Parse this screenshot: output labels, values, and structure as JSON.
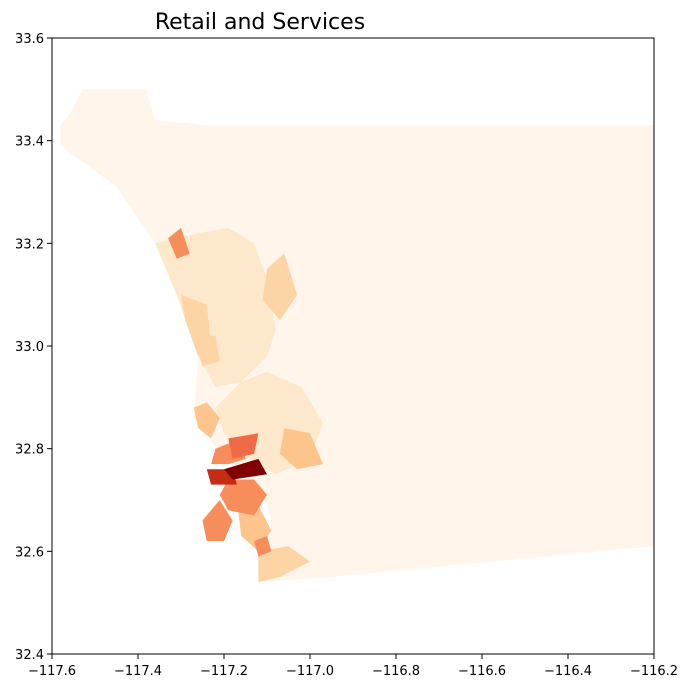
{
  "title": "Retail and Services",
  "colormap": "OrRd",
  "colors": {
    "level0": "#fff5eb",
    "level1": "#fde8cb",
    "level2": "#fdd4a4",
    "level3": "#fdc48c",
    "level4": "#f88d5c",
    "level5": "#ef6b48",
    "level6": "#c42c16",
    "level7": "#7f0000"
  },
  "chart_data": {
    "type": "choropleth",
    "title": "Retail and Services",
    "xlim": [
      -117.6,
      -116.2
    ],
    "ylim": [
      32.4,
      33.6
    ],
    "xticks": [
      {
        "value": -117.6,
        "label": "−117.6"
      },
      {
        "value": -117.4,
        "label": "−117.4"
      },
      {
        "value": -117.2,
        "label": "−117.2"
      },
      {
        "value": -117.0,
        "label": "−117.0"
      },
      {
        "value": -116.8,
        "label": "−116.8"
      },
      {
        "value": -116.6,
        "label": "−116.6"
      },
      {
        "value": -116.4,
        "label": "−116.4"
      },
      {
        "value": -116.2,
        "label": "−116.2"
      }
    ],
    "yticks": [
      {
        "value": 32.4,
        "label": "32.4"
      },
      {
        "value": 32.6,
        "label": "32.6"
      },
      {
        "value": 32.8,
        "label": "32.8"
      },
      {
        "value": 33.0,
        "label": "33.0"
      },
      {
        "value": 33.2,
        "label": "33.2"
      },
      {
        "value": 33.4,
        "label": "33.4"
      },
      {
        "value": 33.6,
        "label": "33.6"
      }
    ],
    "grid": false,
    "legend": "none",
    "regions": [
      {
        "level": 0,
        "points": [
          [
            -117.53,
            33.5
          ],
          [
            -117.38,
            33.5
          ],
          [
            -117.36,
            33.44
          ],
          [
            -117.24,
            33.43
          ],
          [
            -116.2,
            33.43
          ],
          [
            -116.2,
            32.61
          ],
          [
            -116.95,
            32.55
          ],
          [
            -117.12,
            32.54
          ],
          [
            -117.1,
            32.58
          ],
          [
            -117.09,
            32.66
          ],
          [
            -117.11,
            32.72
          ],
          [
            -117.2,
            32.78
          ],
          [
            -117.27,
            32.86
          ],
          [
            -117.26,
            32.98
          ],
          [
            -117.31,
            33.1
          ],
          [
            -117.36,
            33.2
          ],
          [
            -117.45,
            33.31
          ],
          [
            -117.58,
            33.39
          ],
          [
            -117.58,
            33.43
          ],
          [
            -117.56,
            33.45
          ]
        ]
      },
      {
        "level": 1,
        "points": [
          [
            -117.36,
            33.2
          ],
          [
            -117.26,
            33.22
          ],
          [
            -117.19,
            33.23
          ],
          [
            -117.13,
            33.2
          ],
          [
            -117.1,
            33.13
          ],
          [
            -117.08,
            33.03
          ],
          [
            -117.1,
            32.98
          ],
          [
            -117.16,
            32.93
          ],
          [
            -117.22,
            32.92
          ],
          [
            -117.26,
            32.98
          ],
          [
            -117.31,
            33.1
          ]
        ]
      },
      {
        "level": 1,
        "points": [
          [
            -117.16,
            32.93
          ],
          [
            -117.1,
            32.95
          ],
          [
            -117.02,
            32.92
          ],
          [
            -116.97,
            32.85
          ],
          [
            -117.0,
            32.78
          ],
          [
            -117.08,
            32.75
          ],
          [
            -117.14,
            32.78
          ],
          [
            -117.2,
            32.83
          ],
          [
            -117.22,
            32.88
          ]
        ]
      },
      {
        "level": 2,
        "points": [
          [
            -117.3,
            33.1
          ],
          [
            -117.24,
            33.08
          ],
          [
            -117.23,
            33.0
          ],
          [
            -117.26,
            32.98
          ],
          [
            -117.29,
            33.05
          ]
        ]
      },
      {
        "level": 2,
        "points": [
          [
            -117.27,
            33.02
          ],
          [
            -117.22,
            33.02
          ],
          [
            -117.21,
            32.97
          ],
          [
            -117.25,
            32.96
          ]
        ]
      },
      {
        "level": 2,
        "points": [
          [
            -117.1,
            33.15
          ],
          [
            -117.06,
            33.18
          ],
          [
            -117.03,
            33.1
          ],
          [
            -117.07,
            33.05
          ],
          [
            -117.11,
            33.09
          ]
        ]
      },
      {
        "level": 3,
        "points": [
          [
            -117.24,
            32.89
          ],
          [
            -117.27,
            32.88
          ],
          [
            -117.26,
            32.84
          ],
          [
            -117.23,
            32.82
          ],
          [
            -117.21,
            32.86
          ]
        ]
      },
      {
        "level": 3,
        "points": [
          [
            -117.06,
            32.84
          ],
          [
            -117.0,
            32.83
          ],
          [
            -116.97,
            32.77
          ],
          [
            -117.03,
            32.76
          ],
          [
            -117.07,
            32.79
          ]
        ]
      },
      {
        "level": 3,
        "points": [
          [
            -117.17,
            32.7
          ],
          [
            -117.12,
            32.69
          ],
          [
            -117.09,
            32.64
          ],
          [
            -117.12,
            32.6
          ],
          [
            -117.16,
            32.63
          ]
        ]
      },
      {
        "level": 2,
        "points": [
          [
            -117.12,
            32.6
          ],
          [
            -117.05,
            32.61
          ],
          [
            -117.0,
            32.58
          ],
          [
            -117.07,
            32.55
          ],
          [
            -117.12,
            32.54
          ]
        ]
      },
      {
        "level": 4,
        "points": [
          [
            -117.19,
            32.74
          ],
          [
            -117.13,
            32.74
          ],
          [
            -117.1,
            32.71
          ],
          [
            -117.13,
            32.67
          ],
          [
            -117.19,
            32.68
          ],
          [
            -117.21,
            32.71
          ]
        ]
      },
      {
        "level": 4,
        "points": [
          [
            -117.22,
            32.8
          ],
          [
            -117.16,
            32.82
          ],
          [
            -117.15,
            32.78
          ],
          [
            -117.19,
            32.77
          ],
          [
            -117.23,
            32.77
          ]
        ]
      },
      {
        "level": 5,
        "points": [
          [
            -117.19,
            32.82
          ],
          [
            -117.12,
            32.83
          ],
          [
            -117.13,
            32.79
          ],
          [
            -117.18,
            32.78
          ]
        ]
      },
      {
        "level": 4,
        "points": [
          [
            -117.25,
            32.66
          ],
          [
            -117.21,
            32.7
          ],
          [
            -117.18,
            32.66
          ],
          [
            -117.2,
            32.62
          ],
          [
            -117.24,
            32.62
          ]
        ]
      },
      {
        "level": 4,
        "points": [
          [
            -117.33,
            33.21
          ],
          [
            -117.3,
            33.23
          ],
          [
            -117.28,
            33.18
          ],
          [
            -117.31,
            33.17
          ]
        ]
      },
      {
        "level": 4,
        "points": [
          [
            -117.13,
            32.62
          ],
          [
            -117.1,
            32.63
          ],
          [
            -117.09,
            32.6
          ],
          [
            -117.12,
            32.59
          ]
        ]
      },
      {
        "level": 6,
        "points": [
          [
            -117.24,
            32.76
          ],
          [
            -117.18,
            32.76
          ],
          [
            -117.17,
            32.73
          ],
          [
            -117.23,
            32.73
          ]
        ]
      },
      {
        "level": 7,
        "points": [
          [
            -117.2,
            32.76
          ],
          [
            -117.12,
            32.78
          ],
          [
            -117.1,
            32.75
          ],
          [
            -117.18,
            32.74
          ]
        ]
      }
    ]
  }
}
